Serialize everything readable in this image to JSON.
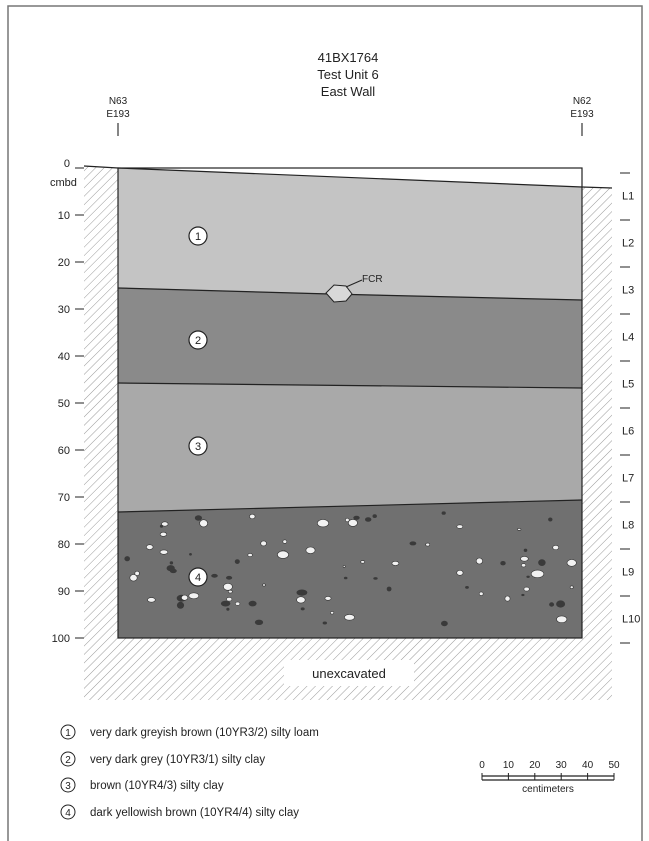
{
  "title": {
    "site": "41BX1764",
    "unit": "Test Unit 6",
    "wall": "East Wall"
  },
  "datums": {
    "left": {
      "north": "N63",
      "east": "E193"
    },
    "right": {
      "north": "N62",
      "east": "E193"
    }
  },
  "depth_axis": {
    "unit_label": "cmbd",
    "ticks": [
      "0",
      "10",
      "20",
      "30",
      "40",
      "50",
      "60",
      "70",
      "80",
      "90",
      "100"
    ]
  },
  "levels": [
    "L1",
    "L2",
    "L3",
    "L4",
    "L5",
    "L6",
    "L7",
    "L8",
    "L9",
    "L10"
  ],
  "strata": [
    {
      "number": "1",
      "description": "very dark greyish brown (10YR3/2) silty loam",
      "color": "#c4c4c4"
    },
    {
      "number": "2",
      "description": "very dark grey (10YR3/1) silty clay",
      "color": "#8a8a8a"
    },
    {
      "number": "3",
      "description": "brown (10YR4/3) silty clay",
      "color": "#a9a9a9"
    },
    {
      "number": "4",
      "description": "dark yellowish brown (10YR4/4) silty clay",
      "color": "#707070"
    }
  ],
  "feature_label": "FCR",
  "unexcavated_label": "unexcavated",
  "scale_bar": {
    "ticks": [
      "0",
      "10",
      "20",
      "30",
      "40",
      "50"
    ],
    "unit": "centimeters"
  }
}
